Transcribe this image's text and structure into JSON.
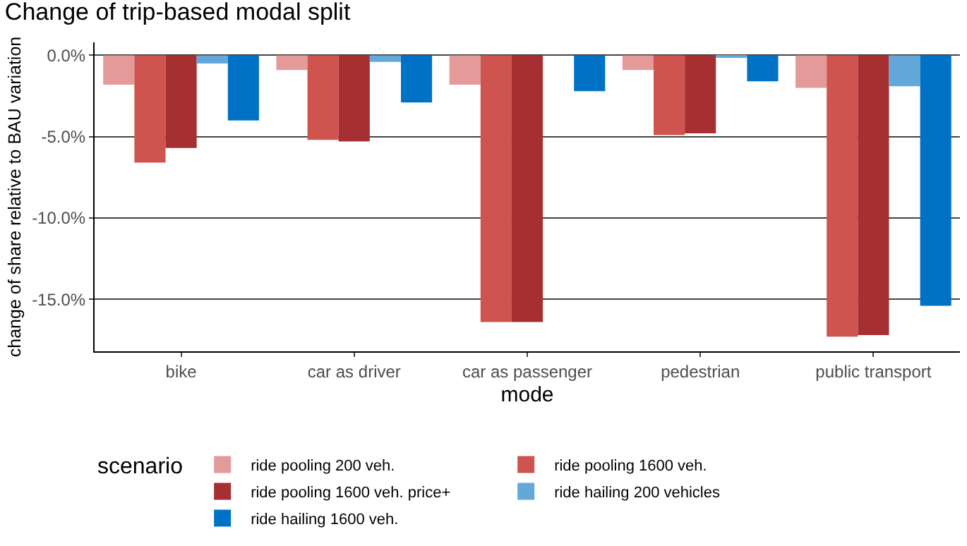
{
  "chart_data": {
    "type": "bar",
    "title": "Change of trip-based modal split",
    "xlabel": "mode",
    "ylabel": "change of share relative to BAU variation",
    "legend_title": "scenario",
    "categories": [
      "bike",
      "car as driver",
      "car as passenger",
      "pedestrian",
      "public transport"
    ],
    "series": [
      {
        "name": "ride pooling 200 veh.",
        "color": "#e39a98",
        "values": [
          -1.8,
          -0.9,
          -1.8,
          -0.9,
          -2.0
        ]
      },
      {
        "name": "ride pooling 1600 veh.",
        "color": "#cf534e",
        "values": [
          -6.6,
          -5.2,
          -16.4,
          -4.9,
          -17.3
        ]
      },
      {
        "name": "ride pooling 1600 veh. price+",
        "color": "#a52f31",
        "values": [
          -5.7,
          -5.3,
          -16.4,
          -4.8,
          -17.2
        ]
      },
      {
        "name": "ride hailing 200 vehicles",
        "color": "#63a8da",
        "values": [
          -0.5,
          -0.4,
          0,
          -0.1,
          -1.9
        ]
      },
      {
        "name": "ride hailing 1600 veh.",
        "color": "#0072c6",
        "values": [
          -4.0,
          -2.9,
          -2.2,
          -1.6,
          -15.4
        ]
      }
    ],
    "ylim": [
      -18.2,
      0.8
    ],
    "yticks": [
      {
        "value": 0,
        "label": "0.0%"
      },
      {
        "value": -5,
        "label": "-5.0%"
      },
      {
        "value": -10,
        "label": "-10.0%"
      },
      {
        "value": -15,
        "label": "-15.0%"
      }
    ],
    "grid": "y",
    "legend": "bottom"
  }
}
